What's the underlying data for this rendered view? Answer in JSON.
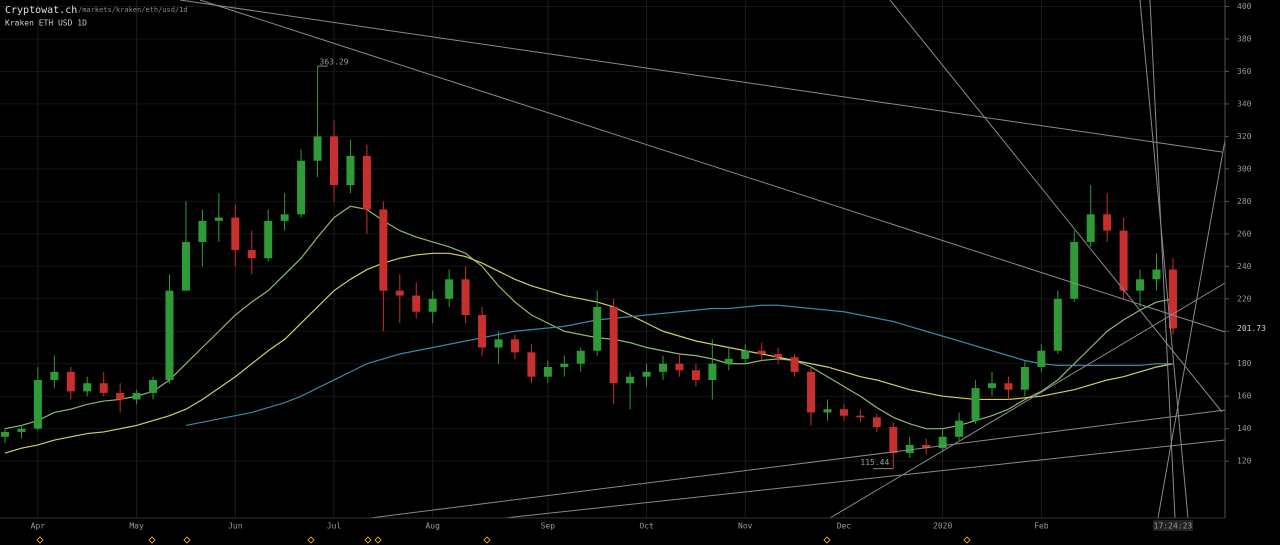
{
  "header": {
    "title": "Cryptowat.ch",
    "path": "/markets/kraken/eth/usd/1d",
    "market": "Kraken ETH USD 1D"
  },
  "chart_data": {
    "type": "candlestick",
    "categories": [
      null,
      null,
      "Apr",
      null,
      null,
      null,
      null,
      null,
      "May",
      null,
      null,
      null,
      null,
      null,
      "Jun",
      null,
      null,
      null,
      null,
      null,
      "Jul",
      null,
      null,
      null,
      null,
      null,
      "Aug",
      null,
      null,
      null,
      null,
      null,
      null,
      "Sep",
      null,
      null,
      null,
      null,
      null,
      "Oct",
      null,
      null,
      null,
      null,
      null,
      "Nov",
      null,
      null,
      null,
      null,
      null,
      "Dec",
      null,
      null,
      null,
      null,
      null,
      "2020",
      null,
      null,
      null,
      null,
      null,
      "Feb",
      null,
      null,
      null,
      null,
      null,
      null,
      null,
      "17:24:23"
    ],
    "open": [
      135,
      138,
      140,
      170,
      175,
      163,
      168,
      162,
      158,
      162,
      170,
      225,
      255,
      268,
      270,
      250,
      245,
      268,
      272,
      305,
      320,
      290,
      308,
      275,
      225,
      222,
      212,
      220,
      232,
      210,
      190,
      195,
      187,
      172,
      178,
      180,
      188,
      215,
      168,
      172,
      175,
      180,
      176,
      170,
      180,
      183,
      188,
      186,
      184,
      175,
      150,
      152,
      148,
      147,
      141,
      125,
      130,
      128,
      135,
      145,
      165,
      168,
      164,
      178,
      188,
      220,
      255,
      272,
      262,
      225,
      232,
      238
    ],
    "high": [
      140,
      142,
      178,
      185,
      178,
      172,
      175,
      168,
      164,
      172,
      235,
      280,
      275,
      285,
      278,
      262,
      275,
      285,
      312,
      363.29,
      330,
      318,
      315,
      280,
      235,
      230,
      225,
      238,
      240,
      215,
      200,
      198,
      192,
      182,
      185,
      190,
      225,
      220,
      175,
      180,
      185,
      186,
      180,
      195,
      190,
      192,
      193,
      190,
      186,
      178,
      158,
      155,
      152,
      149,
      144,
      135,
      134,
      140,
      150,
      170,
      175,
      172,
      182,
      192,
      225,
      262,
      290,
      285,
      270,
      238,
      248,
      245
    ],
    "low": [
      131,
      134,
      139,
      165,
      158,
      160,
      160,
      150,
      155,
      158,
      168,
      225,
      240,
      255,
      240,
      235,
      243,
      262,
      270,
      295,
      280,
      285,
      260,
      200,
      205,
      208,
      205,
      215,
      205,
      185,
      180,
      183,
      168,
      168,
      172,
      175,
      185,
      155,
      152,
      166,
      170,
      172,
      166,
      158,
      176,
      180,
      182,
      180,
      172,
      142,
      145,
      145,
      144,
      138,
      115.44,
      122,
      124,
      126,
      133,
      143,
      160,
      158,
      160,
      175,
      186,
      218,
      252,
      255,
      220,
      215,
      225,
      198
    ],
    "close": [
      138,
      140,
      170,
      175,
      163,
      168,
      162,
      158,
      162,
      170,
      225,
      255,
      268,
      270,
      250,
      245,
      268,
      272,
      305,
      320,
      290,
      308,
      275,
      225,
      222,
      212,
      220,
      232,
      210,
      190,
      195,
      187,
      172,
      178,
      180,
      188,
      215,
      168,
      172,
      175,
      180,
      176,
      170,
      180,
      183,
      188,
      186,
      184,
      175,
      150,
      152,
      148,
      147,
      141,
      125,
      130,
      128,
      135,
      145,
      165,
      168,
      164,
      178,
      188,
      220,
      255,
      272,
      262,
      225,
      232,
      238,
      201.73
    ],
    "up_color": "#2f9b38",
    "down_color": "#c7302f",
    "series": [
      {
        "color": "#8fb86e",
        "values": [
          140,
          142,
          145,
          150,
          152,
          155,
          157,
          158,
          160,
          163,
          170,
          180,
          190,
          200,
          210,
          218,
          225,
          235,
          245,
          258,
          270,
          277,
          275,
          268,
          262,
          258,
          255,
          252,
          248,
          240,
          228,
          218,
          210,
          205,
          200,
          198,
          196,
          195,
          193,
          190,
          188,
          186,
          185,
          183,
          180,
          180,
          182,
          183,
          182,
          178,
          172,
          166,
          160,
          153,
          147,
          143,
          140,
          140,
          142,
          145,
          148,
          152,
          158,
          163,
          170,
          180,
          190,
          200,
          207,
          213,
          218,
          220
        ]
      },
      {
        "color": "#cfcf6a",
        "values": [
          125,
          128,
          130,
          133,
          135,
          137,
          138,
          140,
          142,
          145,
          148,
          152,
          158,
          165,
          172,
          180,
          188,
          195,
          205,
          215,
          225,
          232,
          238,
          242,
          245,
          247,
          248,
          248,
          246,
          242,
          237,
          232,
          228,
          225,
          222,
          220,
          218,
          215,
          210,
          205,
          200,
          197,
          194,
          192,
          190,
          188,
          186,
          184,
          182,
          180,
          178,
          175,
          172,
          170,
          167,
          164,
          162,
          160,
          159,
          158,
          158,
          158,
          159,
          160,
          162,
          164,
          167,
          170,
          172,
          175,
          178,
          180
        ]
      },
      {
        "color": "#3b86a8",
        "values": [
          null,
          null,
          null,
          null,
          null,
          null,
          null,
          null,
          null,
          null,
          null,
          142,
          144,
          146,
          148,
          150,
          153,
          156,
          160,
          165,
          170,
          175,
          180,
          183,
          186,
          188,
          190,
          192,
          194,
          196,
          198,
          200,
          201,
          202,
          203,
          205,
          207,
          208,
          209,
          210,
          211,
          212,
          213,
          214,
          214,
          215,
          216,
          216,
          215,
          214,
          213,
          212,
          210,
          208,
          206,
          203,
          200,
          197,
          194,
          191,
          188,
          185,
          182,
          180,
          179,
          179,
          179,
          179,
          179,
          179,
          180,
          180
        ]
      }
    ],
    "ylim": [
      85,
      404
    ],
    "yticks": [
      120,
      140,
      160,
      180,
      200,
      220,
      240,
      260,
      280,
      300,
      320,
      340,
      360,
      380,
      400
    ],
    "grid": true
  }
}
